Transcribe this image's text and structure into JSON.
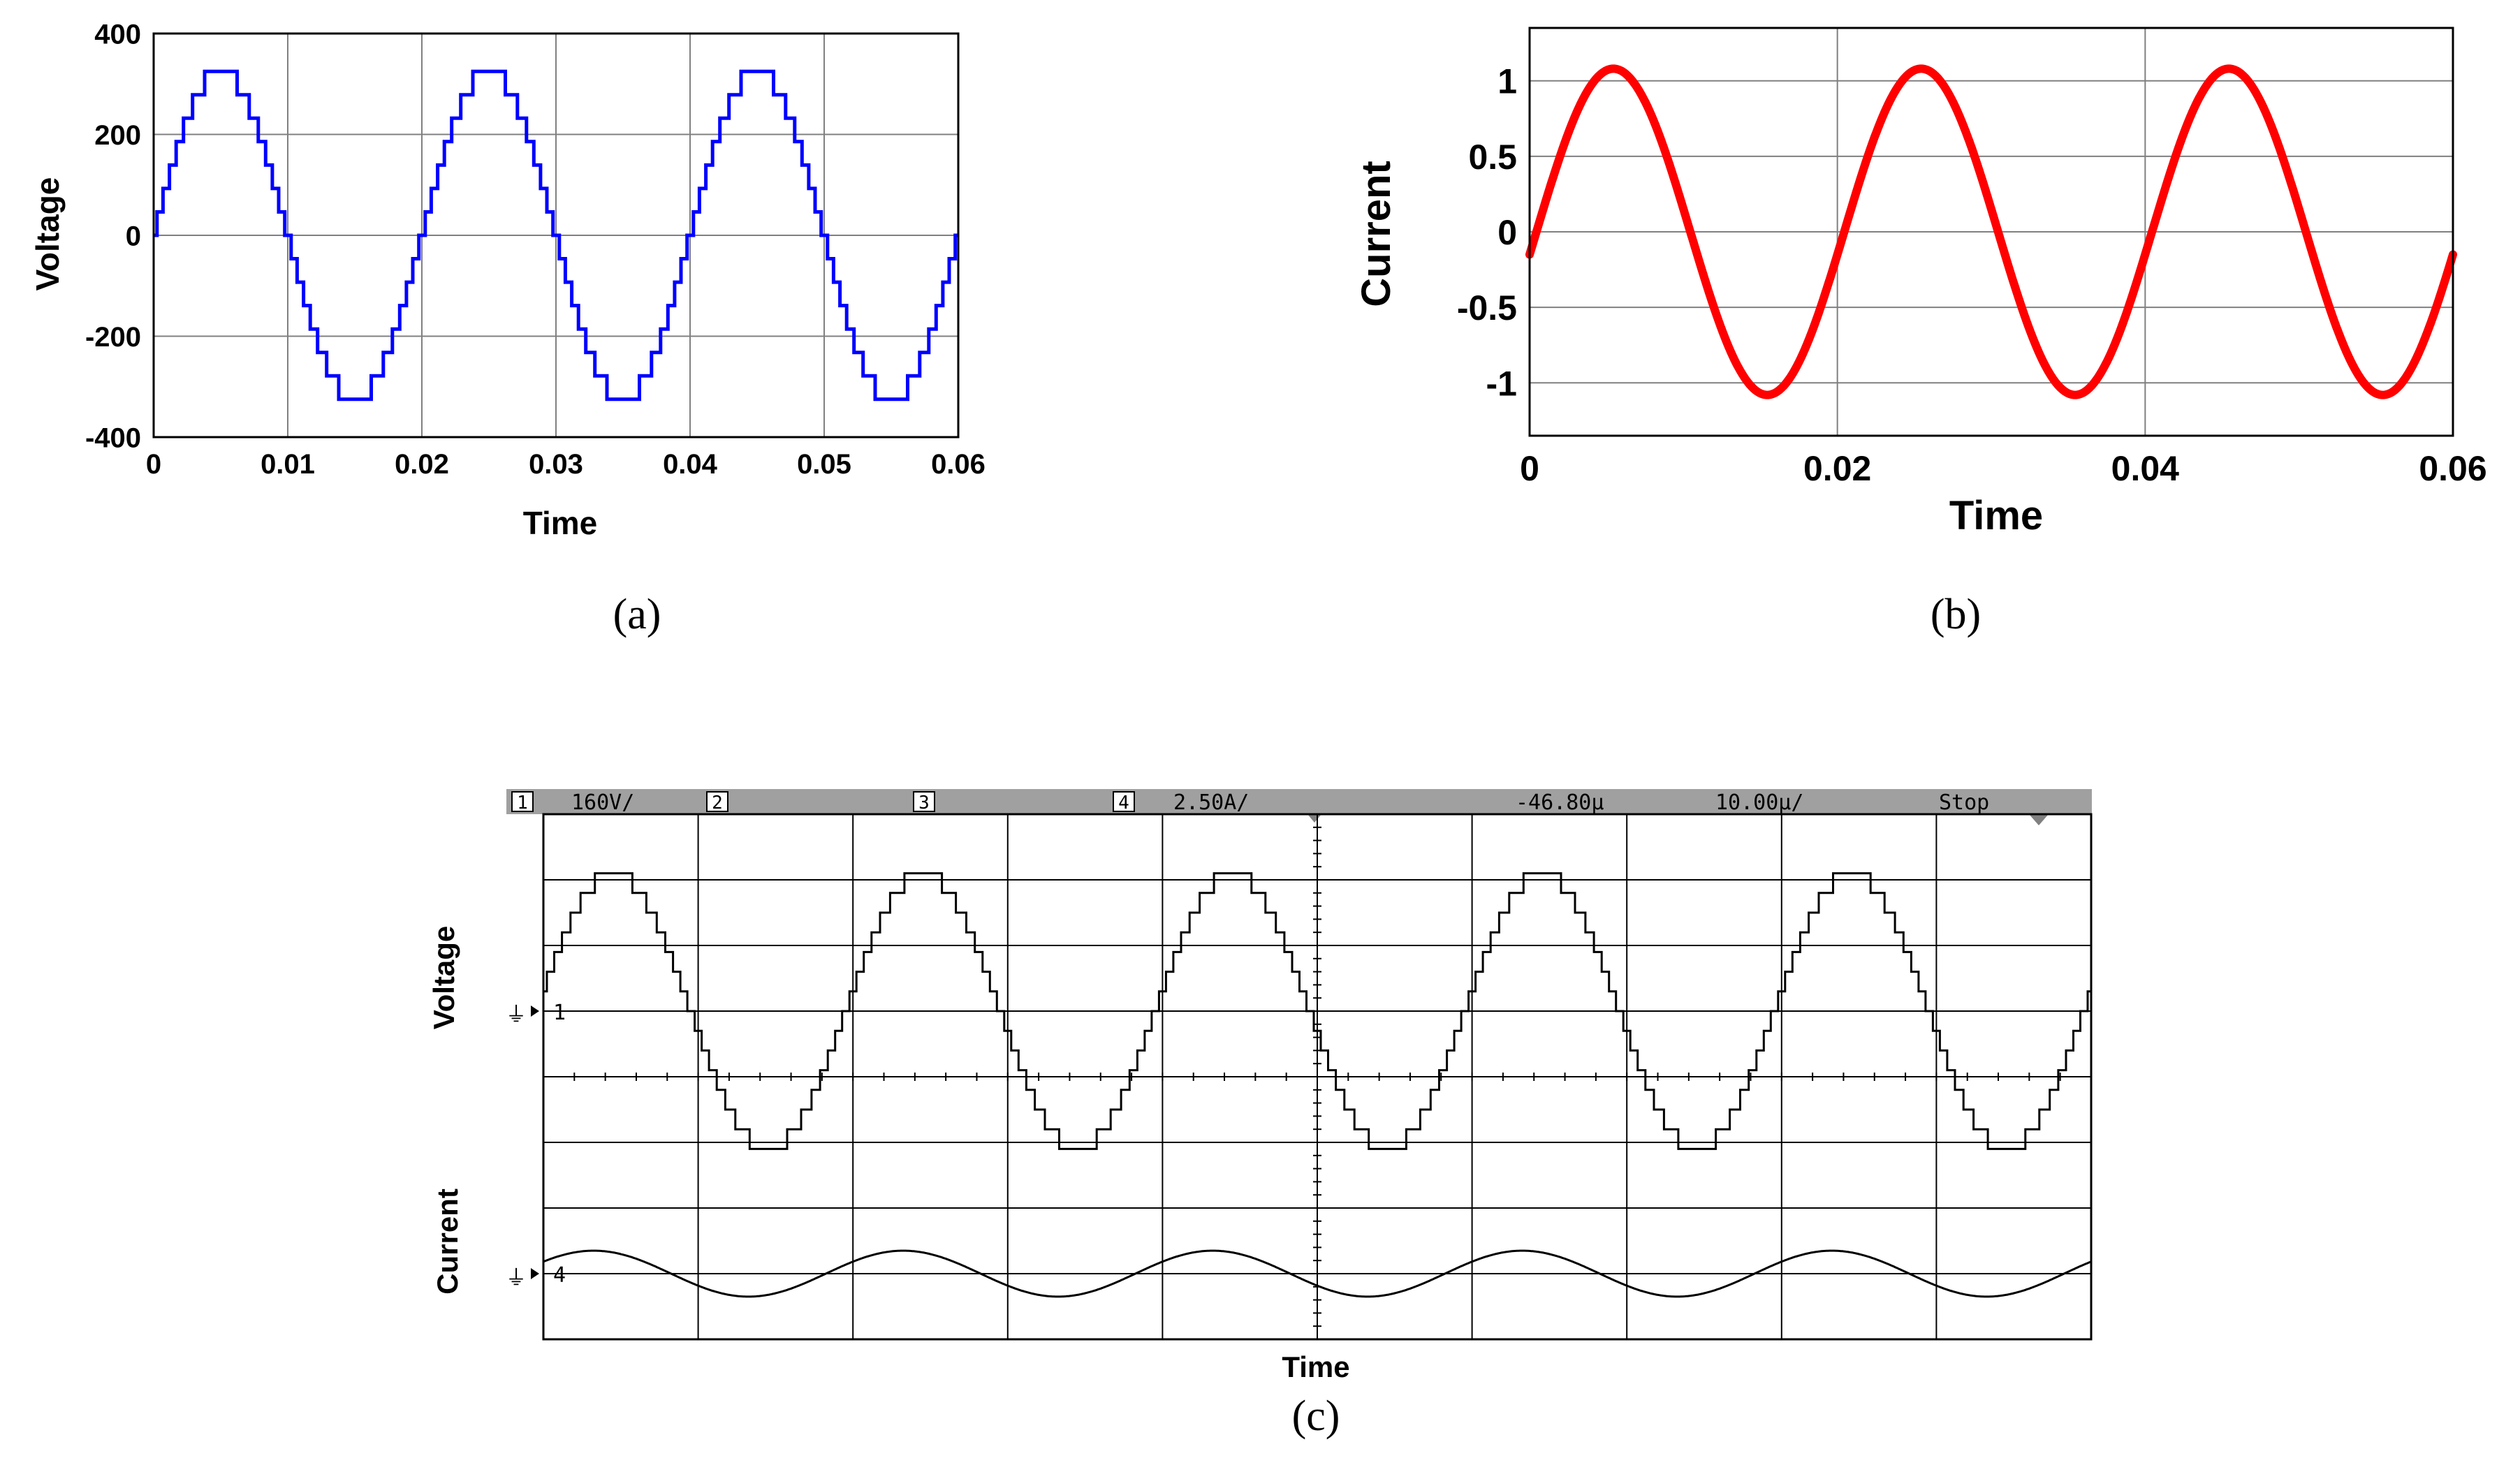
{
  "figure": {
    "captions": [
      "(a)",
      "(b)",
      "(c)"
    ]
  },
  "chart_data": [
    {
      "type": "line",
      "panel": "a",
      "title": "",
      "xlabel": "Time",
      "ylabel": "Voltage",
      "xlim": [
        0,
        0.06
      ],
      "ylim": [
        -400,
        400
      ],
      "xticks": [
        "0",
        "0.01",
        "0.02",
        "0.03",
        "0.04",
        "0.05",
        "0.06"
      ],
      "yticks": [
        "-400",
        "-200",
        "0",
        "200",
        "400"
      ],
      "grid": true,
      "series": [
        {
          "color": "#0000ff",
          "waveform": "staircase-sine",
          "amplitude": 325,
          "frequency_hz": 50,
          "phase_deg": 0,
          "levels": 15,
          "values": [
            [
              0,
              0
            ],
            [
              0.0025,
              230
            ],
            [
              0.005,
              325
            ],
            [
              0.0075,
              230
            ],
            [
              0.01,
              0
            ],
            [
              0.0125,
              -230
            ],
            [
              0.015,
              -325
            ],
            [
              0.0175,
              -230
            ],
            [
              0.02,
              0
            ],
            [
              0.0225,
              230
            ],
            [
              0.025,
              325
            ],
            [
              0.0275,
              230
            ],
            [
              0.03,
              0
            ],
            [
              0.0325,
              -230
            ],
            [
              0.035,
              -325
            ],
            [
              0.0375,
              -230
            ],
            [
              0.04,
              0
            ],
            [
              0.0425,
              230
            ],
            [
              0.045,
              325
            ],
            [
              0.0475,
              230
            ],
            [
              0.05,
              0
            ],
            [
              0.0525,
              -230
            ],
            [
              0.055,
              -325
            ],
            [
              0.0575,
              -230
            ],
            [
              0.06,
              0
            ]
          ]
        }
      ]
    },
    {
      "type": "line",
      "panel": "b",
      "title": "",
      "xlabel": "Time",
      "ylabel": "Current",
      "xlim": [
        0,
        0.06
      ],
      "ylim": [
        -1.35,
        1.35
      ],
      "xticks": [
        "0",
        "0.02",
        "0.04",
        "0.06"
      ],
      "yticks": [
        "1",
        "0.5",
        "0",
        "-0.5",
        "-1"
      ],
      "grid": true,
      "series": [
        {
          "color": "#ff0000",
          "waveform": "sine",
          "amplitude": 1.08,
          "frequency_hz": 50,
          "phase_deg": -8,
          "values": [
            [
              0,
              -0.15
            ],
            [
              0.0055,
              1.08
            ],
            [
              0.0105,
              0
            ],
            [
              0.0155,
              -1.08
            ],
            [
              0.0205,
              0
            ],
            [
              0.0255,
              1.08
            ],
            [
              0.0305,
              0
            ],
            [
              0.0355,
              -1.08
            ],
            [
              0.0405,
              0
            ],
            [
              0.0455,
              1.08
            ],
            [
              0.0505,
              0
            ],
            [
              0.0555,
              -1.08
            ],
            [
              0.06,
              -0.15
            ]
          ]
        }
      ]
    },
    {
      "type": "line",
      "panel": "c",
      "title": "",
      "xlabel": "Time",
      "status_bar": [
        {
          "key": "ch1_num",
          "text": "1"
        },
        {
          "key": "ch1_scale",
          "text": "160V/"
        },
        {
          "key": "ch2_num",
          "text": "2"
        },
        {
          "key": "ch3_num",
          "text": "3"
        },
        {
          "key": "ch4_num",
          "text": "4"
        },
        {
          "key": "ch4_scale",
          "text": "2.50A/"
        },
        {
          "key": "trigger_time",
          "text": "-46.80µ"
        },
        {
          "key": "timebase",
          "text": "10.00µ/"
        },
        {
          "key": "run_state",
          "text": "Stop"
        }
      ],
      "channel_markers": [
        "1",
        "4"
      ],
      "side_labels": [
        "Voltage",
        "Current"
      ],
      "grid": {
        "divisions_x": 10,
        "divisions_y": 8
      },
      "series": [
        {
          "name": "Voltage",
          "color": "#000000",
          "waveform": "staircase-sine",
          "offset_div": 1.0,
          "amplitude_div": 2.1,
          "cycles_across_screen": 5,
          "levels": 15
        },
        {
          "name": "Current",
          "color": "#000000",
          "waveform": "sine",
          "offset_div": -3.0,
          "amplitude_div": 0.35,
          "cycles_across_screen": 5
        }
      ]
    }
  ]
}
